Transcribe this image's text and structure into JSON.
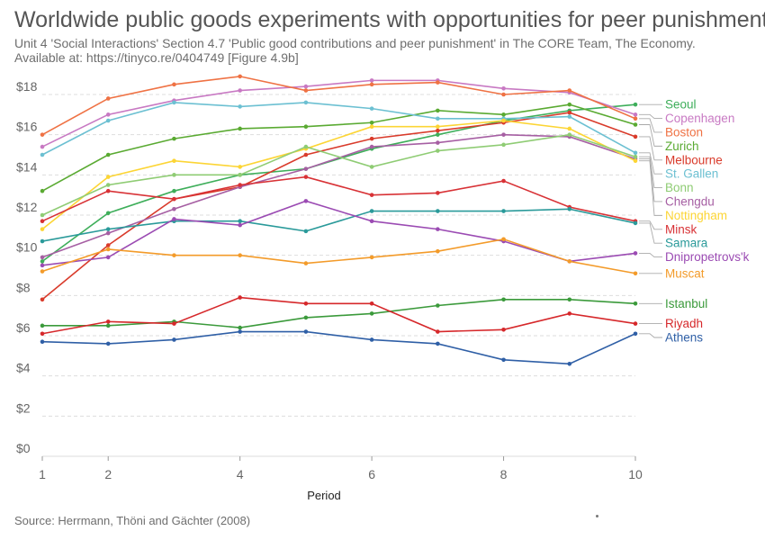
{
  "header": {
    "title": "Worldwide public goods experiments with opportunities for peer punishment",
    "subtitle": "Unit 4 'Social Interactions' Section 4.7 'Public good contributions and peer punishment' in The CORE Team, The Economy. Available at: https://tinyco.re/0404749 [Figure 4.9b]"
  },
  "footer": {
    "source": "Source: Herrmann, Thöni and Gächter (2008)"
  },
  "chart_data": {
    "type": "line",
    "title": "Worldwide public goods experiments with opportunities for peer punishment",
    "xlabel": "Period",
    "ylabel": "",
    "x": [
      1,
      2,
      3,
      4,
      5,
      6,
      7,
      8,
      9,
      10
    ],
    "xlim": [
      1,
      10
    ],
    "ylim": [
      0,
      18
    ],
    "x_ticks": [
      1,
      2,
      4,
      6,
      8,
      10
    ],
    "y_ticks": [
      0,
      2,
      4,
      6,
      8,
      10,
      12,
      14,
      16,
      18
    ],
    "y_tick_labels": [
      "$0",
      "$2",
      "$4",
      "$6",
      "$8",
      "$10",
      "$12",
      "$14",
      "$16",
      "$18"
    ],
    "grid": "horizontal dashed",
    "legend": "right, labels at line ends",
    "series": [
      {
        "name": "Seoul",
        "color": "#3eae5a",
        "values": [
          9.7,
          12.1,
          13.2,
          14.0,
          14.3,
          15.3,
          16.0,
          16.7,
          17.2,
          17.5
        ]
      },
      {
        "name": "Copenhagen",
        "color": "#c879c3",
        "values": [
          15.4,
          17.0,
          17.7,
          18.2,
          18.4,
          18.7,
          18.7,
          18.3,
          18.1,
          17.0
        ]
      },
      {
        "name": "Boston",
        "color": "#ef7244",
        "values": [
          16.0,
          17.8,
          18.5,
          18.9,
          18.2,
          18.5,
          18.6,
          18.0,
          18.2,
          16.8
        ]
      },
      {
        "name": "Zurich",
        "color": "#5aaa32",
        "values": [
          13.2,
          15.0,
          15.8,
          16.3,
          16.4,
          16.6,
          17.2,
          17.0,
          17.5,
          16.5
        ]
      },
      {
        "name": "Melbourne",
        "color": "#d93b2b",
        "values": [
          7.8,
          10.5,
          12.8,
          13.4,
          15.0,
          15.8,
          16.2,
          16.6,
          17.1,
          15.9
        ]
      },
      {
        "name": "St. Gallen",
        "color": "#6cc0d2",
        "values": [
          15.0,
          16.7,
          17.6,
          17.4,
          17.6,
          17.3,
          16.8,
          16.8,
          16.9,
          15.1
        ]
      },
      {
        "name": "Chengdu",
        "color": "#a65fa3",
        "values": [
          9.9,
          11.1,
          12.3,
          13.4,
          14.3,
          15.4,
          15.6,
          16.0,
          15.9,
          14.8
        ]
      },
      {
        "name": "Nottingham",
        "color": "#fcd535",
        "values": [
          11.3,
          13.9,
          14.7,
          14.4,
          15.3,
          16.4,
          16.4,
          16.7,
          16.3,
          14.7
        ]
      },
      {
        "name": "Bonn",
        "color": "#8fcc74",
        "values": [
          12.0,
          13.5,
          14.0,
          14.0,
          15.4,
          14.4,
          15.2,
          15.5,
          16.0,
          14.9
        ]
      },
      {
        "name": "Minsk",
        "color": "#d83236",
        "values": [
          11.7,
          13.2,
          12.8,
          13.5,
          13.9,
          13.0,
          13.1,
          13.7,
          12.4,
          11.7
        ]
      },
      {
        "name": "Samara",
        "color": "#2a9a9a",
        "values": [
          10.7,
          11.3,
          11.7,
          11.7,
          11.2,
          12.2,
          12.2,
          12.2,
          12.3,
          11.6
        ]
      },
      {
        "name": "Dnipropetrovs'k",
        "color": "#9b4bb3",
        "values": [
          9.5,
          9.9,
          11.8,
          11.5,
          12.7,
          11.7,
          11.3,
          10.7,
          9.7,
          10.1
        ]
      },
      {
        "name": "Muscat",
        "color": "#f39b2a",
        "values": [
          9.2,
          10.3,
          10.0,
          10.0,
          9.6,
          9.9,
          10.2,
          10.8,
          9.7,
          9.1
        ]
      },
      {
        "name": "Istanbul",
        "color": "#3b9a3b",
        "values": [
          6.5,
          6.5,
          6.7,
          6.4,
          6.9,
          7.1,
          7.5,
          7.8,
          7.8,
          7.6
        ]
      },
      {
        "name": "Riyadh",
        "color": "#d6282b",
        "values": [
          6.1,
          6.7,
          6.6,
          7.9,
          7.6,
          7.6,
          6.2,
          6.3,
          7.1,
          6.6
        ]
      },
      {
        "name": "Athens",
        "color": "#2f5fa6",
        "values": [
          5.7,
          5.6,
          5.8,
          6.2,
          6.2,
          5.8,
          5.6,
          4.8,
          4.6,
          6.1
        ]
      }
    ]
  }
}
